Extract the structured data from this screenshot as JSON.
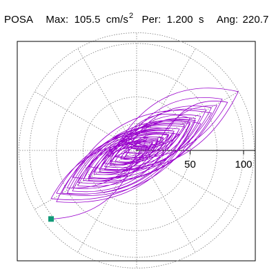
{
  "header": {
    "station": "POSA",
    "max_label": "Max:",
    "max_value": "105.5",
    "max_unit": "cm/s",
    "max_exp": "2",
    "per_label": "Per:",
    "per_value": "1.200",
    "per_unit": "s",
    "ang_label": "Ang:",
    "ang_value": "220.7"
  },
  "colors": {
    "trace": "#9900cc",
    "marker": "#119977",
    "grid": "#777777",
    "axis": "#000000"
  },
  "chart_data": {
    "type": "scatter",
    "subtype": "polar-particle-motion",
    "units": "cm/s^2",
    "max_amplitude": 105.5,
    "period_s": 1.2,
    "angle_deg": 220.7,
    "radial_range": [
      0,
      110
    ],
    "rings": [
      25,
      50,
      75,
      100
    ],
    "radial_tick_labels": [
      "50",
      "100"
    ],
    "spoke_step_deg": 30,
    "grid": true,
    "marker_point": {
      "x": -80.0,
      "y": -64.1
    },
    "trace_x": [
      0,
      8,
      -12,
      20,
      -30,
      35,
      -40,
      25,
      -10,
      50,
      -60,
      70,
      -45,
      30,
      85,
      -20,
      60,
      -75,
      40,
      -15,
      95,
      -35,
      55,
      -80,
      20,
      75,
      -50,
      10,
      -65,
      45,
      -25,
      65,
      -40,
      30,
      -10,
      80,
      -55,
      15,
      -30,
      50,
      -70,
      35,
      -20,
      60,
      -45,
      25,
      -5,
      70,
      -35,
      10,
      -50,
      40,
      -15,
      55,
      -30,
      20,
      -60,
      45,
      -10,
      30,
      -25,
      15,
      -40,
      35,
      -5,
      25,
      -20,
      10,
      -15,
      5,
      -10,
      15,
      -25,
      20,
      -35,
      30,
      -45,
      40,
      -55,
      50,
      -65,
      55,
      -75,
      35,
      -60,
      20,
      -45,
      10,
      -30,
      0,
      -80
    ],
    "trace_y": [
      0,
      5,
      -8,
      10,
      -12,
      18,
      -20,
      8,
      14,
      30,
      -25,
      35,
      -15,
      20,
      45,
      -5,
      25,
      -40,
      15,
      10,
      55,
      -18,
      28,
      -45,
      5,
      42,
      -28,
      12,
      -35,
      22,
      -10,
      38,
      -22,
      15,
      4,
      48,
      -30,
      8,
      -12,
      26,
      -40,
      18,
      -6,
      32,
      -25,
      12,
      6,
      40,
      -18,
      3,
      -28,
      20,
      -8,
      30,
      -15,
      9,
      -35,
      24,
      -2,
      14,
      -12,
      7,
      -22,
      18,
      2,
      11,
      -10,
      4,
      -7,
      2,
      -5,
      8,
      -14,
      11,
      -20,
      15,
      -26,
      20,
      -33,
      25,
      -40,
      28,
      -48,
      16,
      -38,
      8,
      -28,
      3,
      -18,
      -2,
      -64.1
    ]
  }
}
